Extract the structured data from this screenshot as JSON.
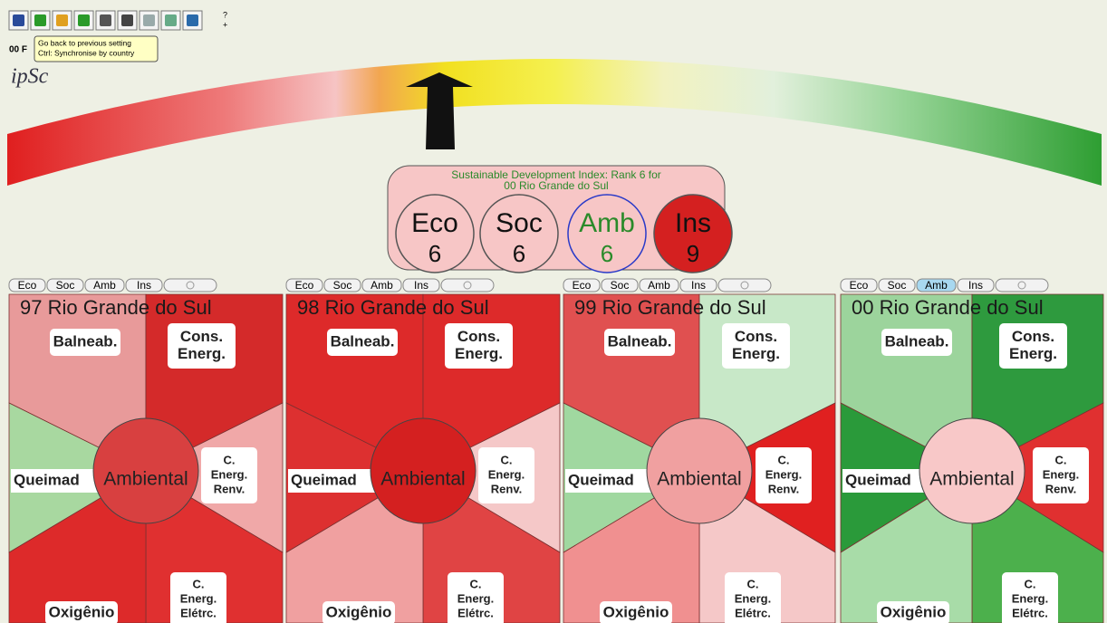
{
  "toolbar": {
    "help": "?",
    "plus": "+"
  },
  "tooltip": {
    "lines": [
      "Go back to previous setting",
      "Ctrl: Synchronise by country"
    ]
  },
  "partial_label": "00 F",
  "logo": "ipSc",
  "summary": {
    "title_lines": [
      "Sustainable Development Index: Rank 6 for",
      "00 Rio Grande do Sul"
    ],
    "scores": [
      {
        "label": "Eco",
        "value": 6
      },
      {
        "label": "Soc",
        "value": 6
      },
      {
        "label": "Amb",
        "value": 6
      },
      {
        "label": "Ins",
        "value": 9
      }
    ]
  },
  "tabs": [
    "Eco",
    "Soc",
    "Amb",
    "Ins"
  ],
  "sector_labels": {
    "balneab": [
      "Balneab."
    ],
    "cons_energ": [
      "Cons.",
      "Energ."
    ],
    "renv": [
      "C.",
      "Energ.",
      "Renv."
    ],
    "eletrc": [
      "C.",
      "Energ.",
      "Elétrc."
    ],
    "oxigenio": [
      "Oxigênio"
    ],
    "queimad": [
      "Queimad"
    ]
  },
  "center_label": "Ambiental",
  "panels": [
    {
      "title": "97 Rio Grande do Sul"
    },
    {
      "title": "98 Rio Grande do Sul"
    },
    {
      "title": "99 Rio Grande do Sul"
    },
    {
      "title": "00 Rio Grande do Sul"
    }
  ]
}
